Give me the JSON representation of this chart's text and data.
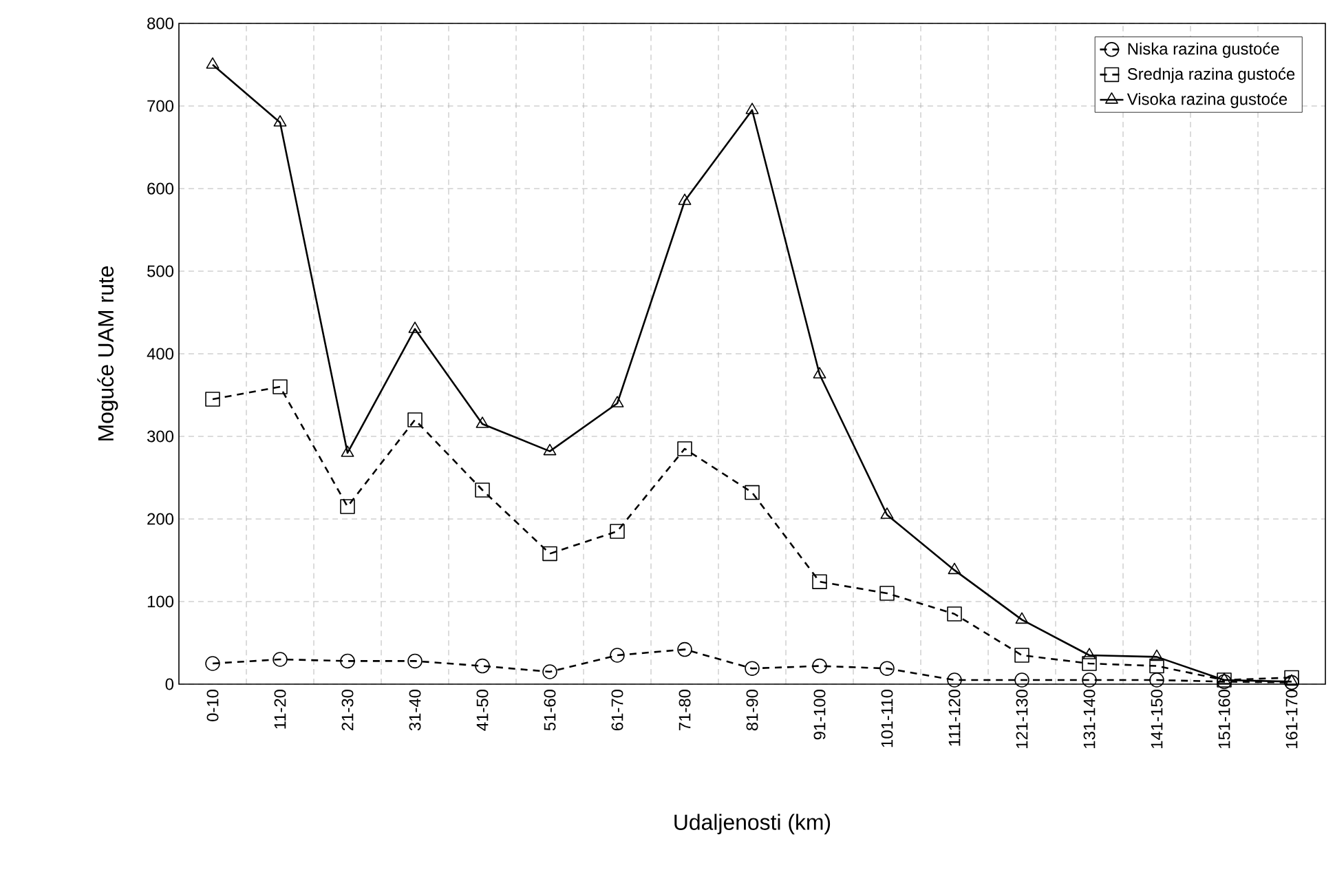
{
  "chart_data": {
    "type": "line",
    "xlabel": "Udaljenosti (km)",
    "ylabel": "Moguće UAM rute",
    "categories": [
      "0-10",
      "11-20",
      "21-30",
      "31-40",
      "41-50",
      "51-60",
      "61-70",
      "71-80",
      "81-90",
      "91-100",
      "101-110",
      "111-120",
      "121-130",
      "131-140",
      "141-150",
      "151-160",
      "161-170"
    ],
    "series": [
      {
        "name": "Niska razina gustoće",
        "color": "#000000",
        "marker": "circle",
        "line_style": "dashed",
        "values": [
          25,
          30,
          28,
          28,
          22,
          15,
          35,
          42,
          19,
          22,
          19,
          5,
          5,
          5,
          5,
          3,
          2
        ]
      },
      {
        "name": "Srednja razina gustoće",
        "color": "#000000",
        "marker": "square",
        "line_style": "dashed",
        "values": [
          345,
          360,
          215,
          320,
          235,
          158,
          185,
          285,
          232,
          124,
          110,
          85,
          35,
          25,
          22,
          5,
          8
        ]
      },
      {
        "name": "Visoka razina gustoće",
        "color": "#000000",
        "marker": "triangle",
        "line_style": "solid",
        "values": [
          750,
          680,
          280,
          430,
          315,
          282,
          340,
          585,
          695,
          375,
          205,
          138,
          78,
          35,
          33,
          5,
          3
        ]
      }
    ],
    "ylim": [
      0,
      800
    ],
    "yticks": [
      0,
      100,
      200,
      300,
      400,
      500,
      600,
      700,
      800
    ],
    "grid": true,
    "legend": "top right"
  }
}
